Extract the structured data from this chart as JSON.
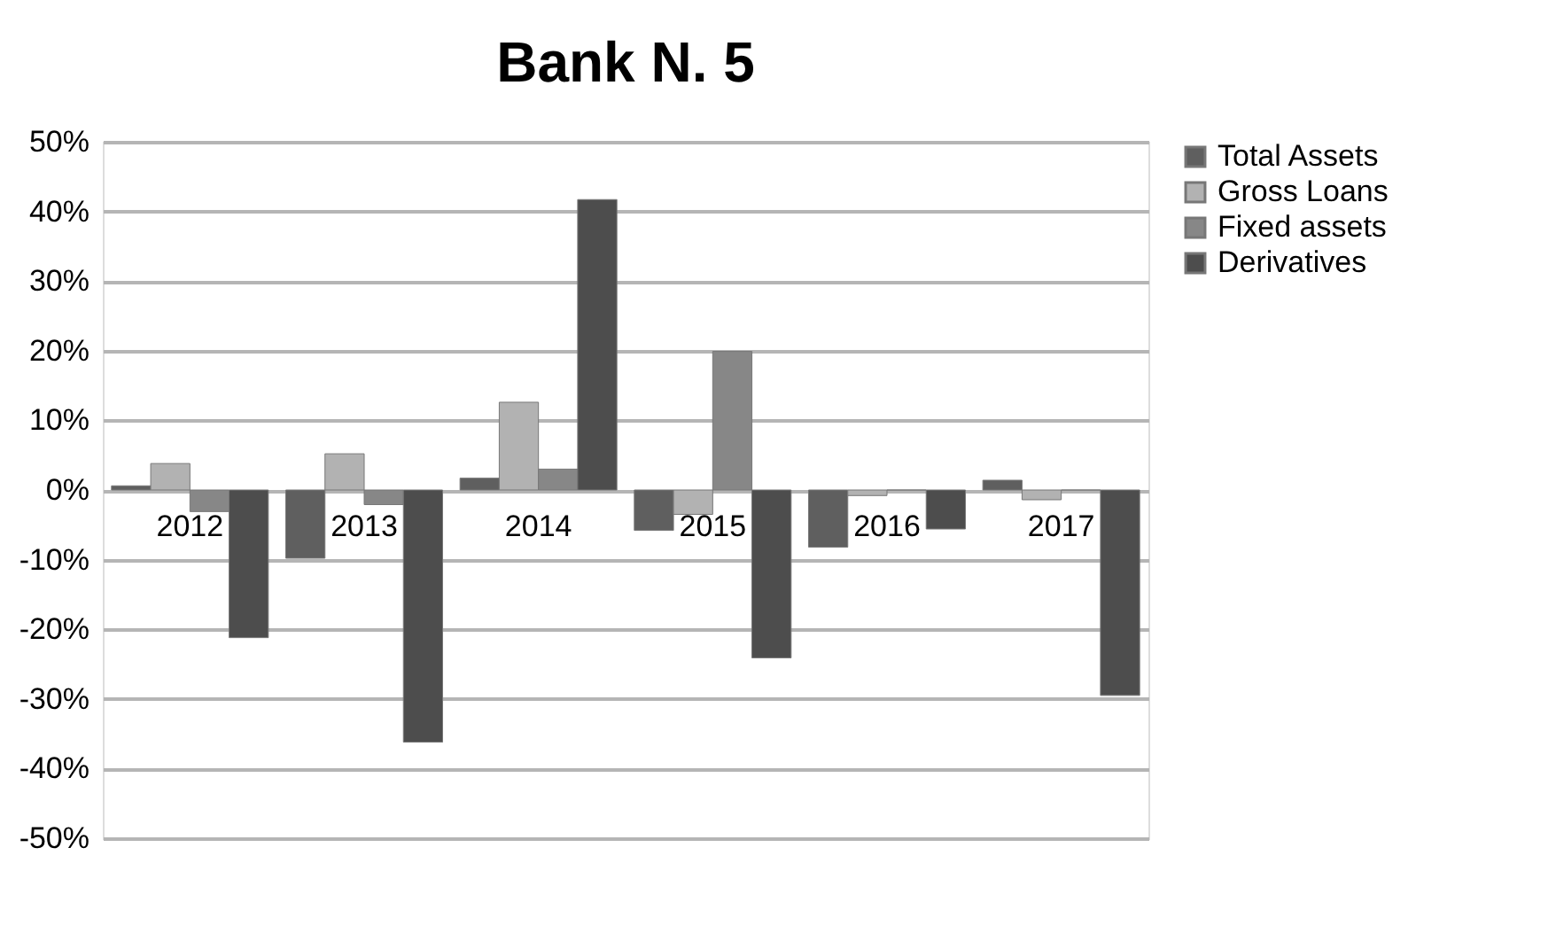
{
  "chart_data": {
    "type": "bar",
    "title": "Bank N. 5",
    "categories": [
      "2012",
      "2013",
      "2014",
      "2015",
      "2016",
      "2017"
    ],
    "series": [
      {
        "name": "Total Assets",
        "color": "#5f5f5f",
        "values": [
          0.6,
          -9.8,
          1.7,
          -5.8,
          -8.2,
          1.4
        ]
      },
      {
        "name": "Gross Loans",
        "color": "#b2b2b2",
        "values": [
          3.8,
          5.2,
          12.6,
          -3.5,
          -0.8,
          -1.4
        ]
      },
      {
        "name": "Fixed assets",
        "color": "#878787",
        "values": [
          -3.1,
          -2.1,
          3.0,
          19.9,
          0,
          0
        ]
      },
      {
        "name": "Derivatives",
        "color": "#4d4d4d",
        "values": [
          -21.2,
          -36.2,
          41.7,
          -24.1,
          -5.6,
          -29.5
        ]
      }
    ],
    "ylim": [
      -50,
      50
    ],
    "yticks": [
      {
        "value": -50,
        "label": "-50%"
      },
      {
        "value": -40,
        "label": "-40%"
      },
      {
        "value": -30,
        "label": "-30%"
      },
      {
        "value": -20,
        "label": "-20%"
      },
      {
        "value": -10,
        "label": "-10%"
      },
      {
        "value": 0,
        "label": "0%"
      },
      {
        "value": 10,
        "label": "10%"
      },
      {
        "value": 20,
        "label": "20%"
      },
      {
        "value": 30,
        "label": "30%"
      },
      {
        "value": 40,
        "label": "40%"
      },
      {
        "value": 50,
        "label": "50%"
      }
    ],
    "grid": "y",
    "legend": "right"
  }
}
